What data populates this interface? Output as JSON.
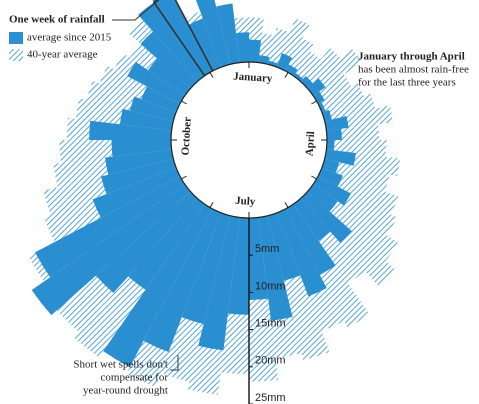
{
  "chart_data": {
    "type": "radial-bar",
    "title": "One week of rainfall",
    "categories": [
      "January",
      null,
      null,
      null,
      null,
      null,
      null,
      null,
      null,
      null,
      null,
      null,
      null,
      "April",
      null,
      null,
      null,
      null,
      null,
      null,
      null,
      null,
      null,
      null,
      null,
      null,
      "July",
      null,
      null,
      null,
      null,
      null,
      null,
      null,
      null,
      null,
      null,
      null,
      null,
      "October",
      null,
      null,
      null,
      null,
      null,
      null,
      null,
      null,
      null,
      null,
      null,
      null
    ],
    "series": [
      {
        "name": "40-year average",
        "color": "#2a8fd0",
        "pattern": "hatch",
        "values": [
          6,
          4,
          5,
          7,
          5,
          4,
          6,
          8,
          5,
          6,
          7,
          9,
          7,
          8,
          10,
          9,
          11,
          12,
          14,
          16,
          13,
          18,
          17,
          20,
          19,
          22,
          21,
          24,
          23,
          25,
          22,
          25,
          24,
          20,
          23,
          19,
          18,
          16,
          15,
          14,
          13,
          12,
          11,
          10,
          9,
          11,
          10,
          12,
          8,
          9,
          7,
          6
        ]
      },
      {
        "name": "average since 2015",
        "color": "#2a8fd0",
        "pattern": "solid",
        "values": [
          3,
          1,
          0.5,
          2,
          1,
          0.5,
          1,
          2,
          1,
          0.5,
          1,
          3,
          2,
          1,
          4,
          2,
          3,
          5,
          4,
          8,
          6,
          10,
          12,
          9,
          14,
          11,
          13,
          18,
          15,
          20,
          24,
          14,
          17,
          25,
          22,
          12,
          10,
          9,
          8,
          11,
          7,
          6,
          5,
          8,
          6,
          9,
          12,
          14,
          7,
          10,
          8,
          4
        ]
      }
    ],
    "highlight": {
      "series": 0,
      "index": 47
    },
    "ylim": [
      0,
      25
    ],
    "yticks": [
      {
        "value": 5,
        "label": "5mm"
      },
      {
        "value": 10,
        "label": "10mm"
      },
      {
        "value": 15,
        "label": "15mm"
      },
      {
        "value": 20,
        "label": "20mm"
      },
      {
        "value": 25,
        "label": "25mm"
      }
    ],
    "annotations": [
      {
        "lines": [
          "January through April",
          "has been almost rain-free",
          "for the last three years"
        ]
      },
      {
        "lines": [
          "Short wet spells don't",
          "compensate for",
          "year-round drought"
        ]
      }
    ]
  }
}
